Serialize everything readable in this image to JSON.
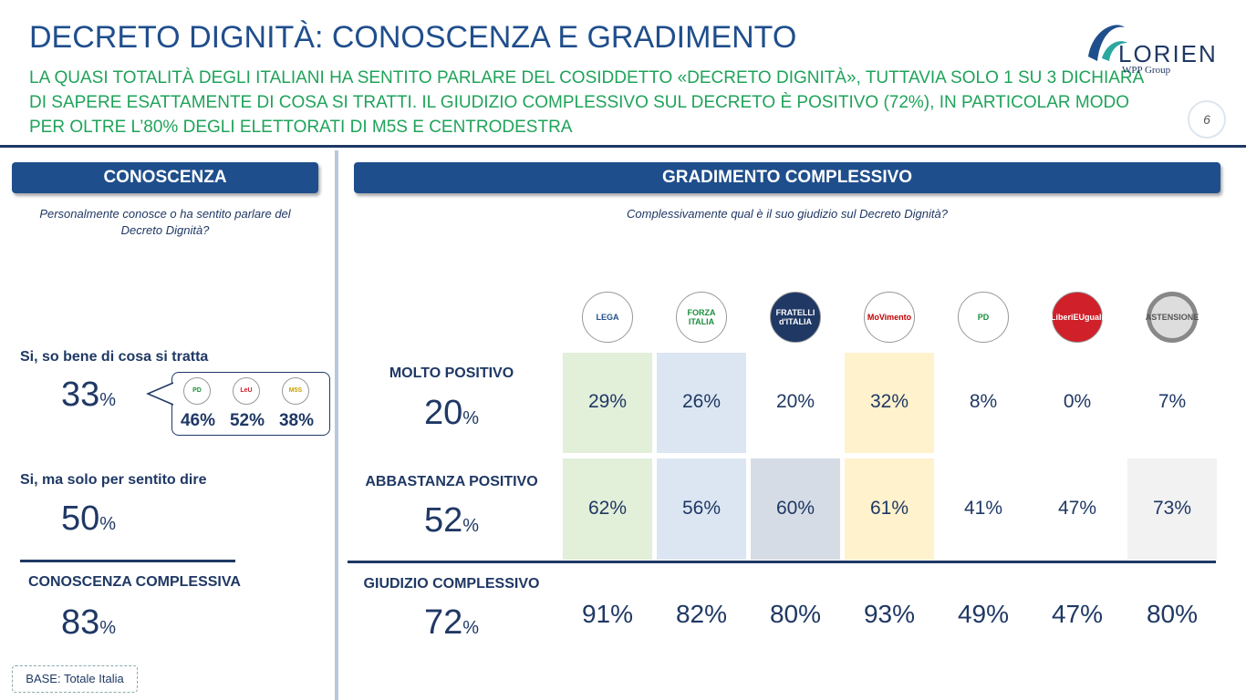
{
  "header": {
    "title": "DECRETO DIGNITÀ: CONOSCENZA E GRADIMENTO",
    "subtitle": [
      "LA QUASI TOTALITÀ DEGLI ITALIANI HA SENTITO PARLARE DEL COSIDDETTO «DECRETO DIGNITÀ», TUTTAVIA SOLO 1 SU 3 DICHIARA",
      "DI SAPERE ESATTAMENTE DI COSA SI TRATTI. IL GIUDIZIO COMPLESSIVO SUL DECRETO È POSITIVO (72%), IN PARTICOLAR MODO",
      "PER OLTRE L’80% DEGLI ELETTORATI DI M5S E CENTRODESTRA"
    ],
    "logo": "LORIEN",
    "logo_sub": "WPP Group",
    "page": "6"
  },
  "left": {
    "heading": "CONOSCENZA",
    "question": [
      "Personalmente conosce o ha sentito parlare del",
      "Decreto Dignità?"
    ],
    "items": [
      {
        "label": "Si, so bene di cosa si tratta",
        "value": 33,
        "unit": "%"
      },
      {
        "label": "Si, ma solo per sentito dire",
        "value": 50,
        "unit": "%"
      },
      {
        "label": "CONOSCENZA COMPLESSIVA",
        "value": 83,
        "unit": "%"
      }
    ],
    "bubble": [
      {
        "logo": "PD",
        "value": "46%"
      },
      {
        "logo": "LeU",
        "value": "52%"
      },
      {
        "logo": "M5S",
        "value": "38%"
      }
    ],
    "base": "BASE: Totale Italia"
  },
  "right": {
    "heading": "GRADIMENTO COMPLESSIVO",
    "question": "Complessivamente qual è il suo giudizio sul Decreto Dignità?",
    "parties": [
      "LEGA",
      "FORZA ITALIA",
      "FRATELLI d'ITALIA",
      "MoVimento",
      "PD",
      "LiberiEUguali",
      "ASTENSIONE"
    ],
    "rows": [
      {
        "label": "MOLTO POSITIVO",
        "value": 20,
        "unit": "%",
        "cells": [
          "29%",
          "26%",
          "20%",
          "32%",
          "8%",
          "0%",
          "7%"
        ]
      },
      {
        "label": "ABBASTANZA POSITIVO",
        "value": 52,
        "unit": "%",
        "cells": [
          "62%",
          "56%",
          "60%",
          "61%",
          "41%",
          "47%",
          "73%"
        ]
      },
      {
        "label": "GIUDIZIO COMPLESSIVO",
        "value": 72,
        "unit": "%",
        "cells": [
          "91%",
          "82%",
          "80%",
          "93%",
          "49%",
          "47%",
          "80%"
        ]
      }
    ]
  }
}
